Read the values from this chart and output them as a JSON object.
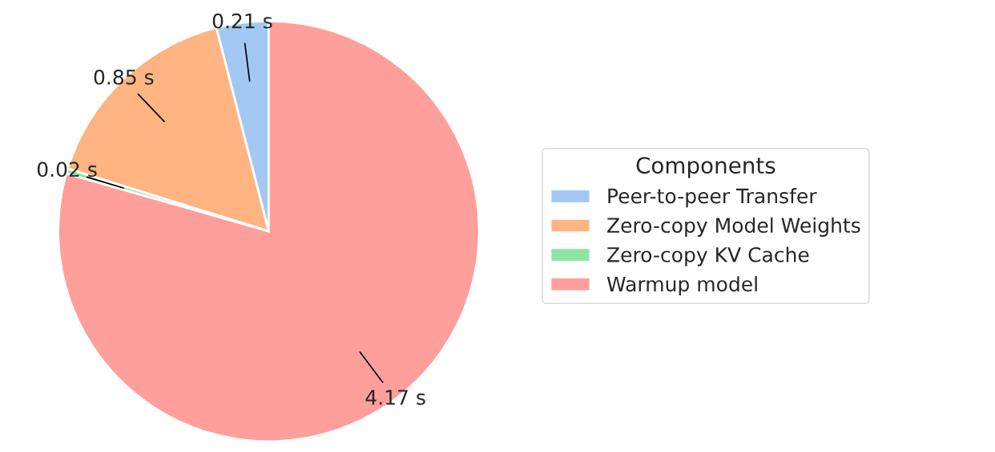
{
  "chart_data": {
    "type": "pie",
    "categories": [
      "Peer-to-peer Transfer",
      "Zero-copy Model Weights",
      "Zero-copy KV Cache",
      "Warmup model"
    ],
    "values": [
      0.21,
      0.85,
      0.02,
      4.17
    ],
    "value_labels": [
      "0.21 s",
      "0.85 s",
      "0.02 s",
      "4.17 s"
    ],
    "colors": [
      "#a1c9f4",
      "#ffb482",
      "#8de5a1",
      "#ff9f9b"
    ],
    "legend_title": "Components",
    "legend": "right"
  }
}
